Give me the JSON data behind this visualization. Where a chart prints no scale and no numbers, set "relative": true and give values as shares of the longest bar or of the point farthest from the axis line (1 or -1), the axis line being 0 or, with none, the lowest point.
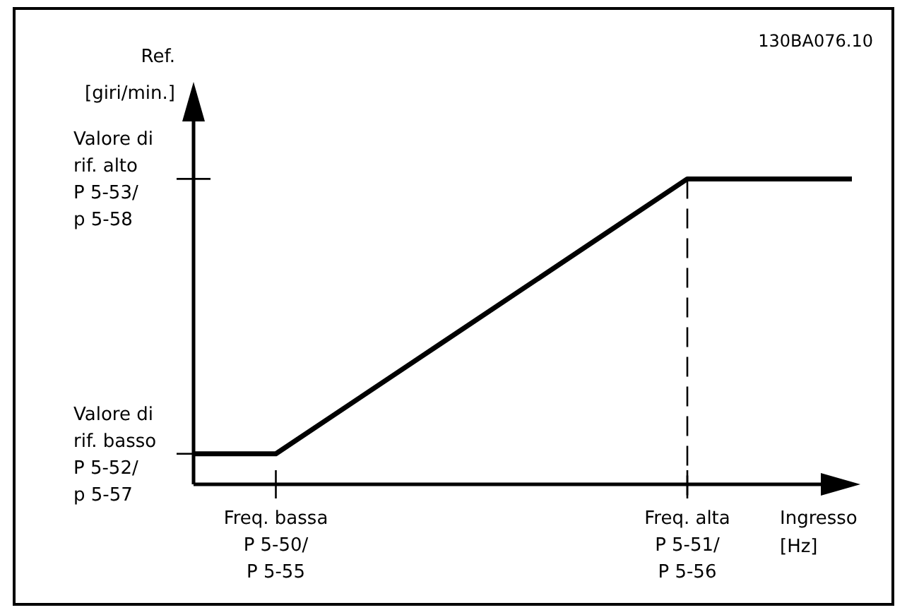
{
  "chart_data": {
    "type": "line",
    "relative": true,
    "ylabel": "Ref.\n[giri/min.]",
    "xlabel": "Ingresso\n[Hz]",
    "annotations": [
      "130BA076.10",
      "Valore di\nrif. basso\nP 5-52/\np 5-57",
      "Valore di\nrif. alto\nP 5-53/\np 5-58"
    ],
    "categories": [
      null,
      "Freq. bassa\nP 5-50/\nP 5-55",
      null,
      null,
      null,
      null,
      "Freq. alta\nP 5-51/\nP 5-56",
      null,
      null
    ],
    "series": [
      {
        "color": "#000000",
        "values": [
          0.1,
          0.1,
          0.28,
          0.46,
          0.64,
          0.82,
          1,
          1,
          1
        ]
      }
    ],
    "ref_lines": [
      {
        "axis": "x",
        "value": "Freq. alta\nP 5-51/\nP 5-56",
        "line_style": "dashed",
        "color": "#000000"
      }
    ],
    "grid": false,
    "marker": "none",
    "line_style": "solid"
  }
}
